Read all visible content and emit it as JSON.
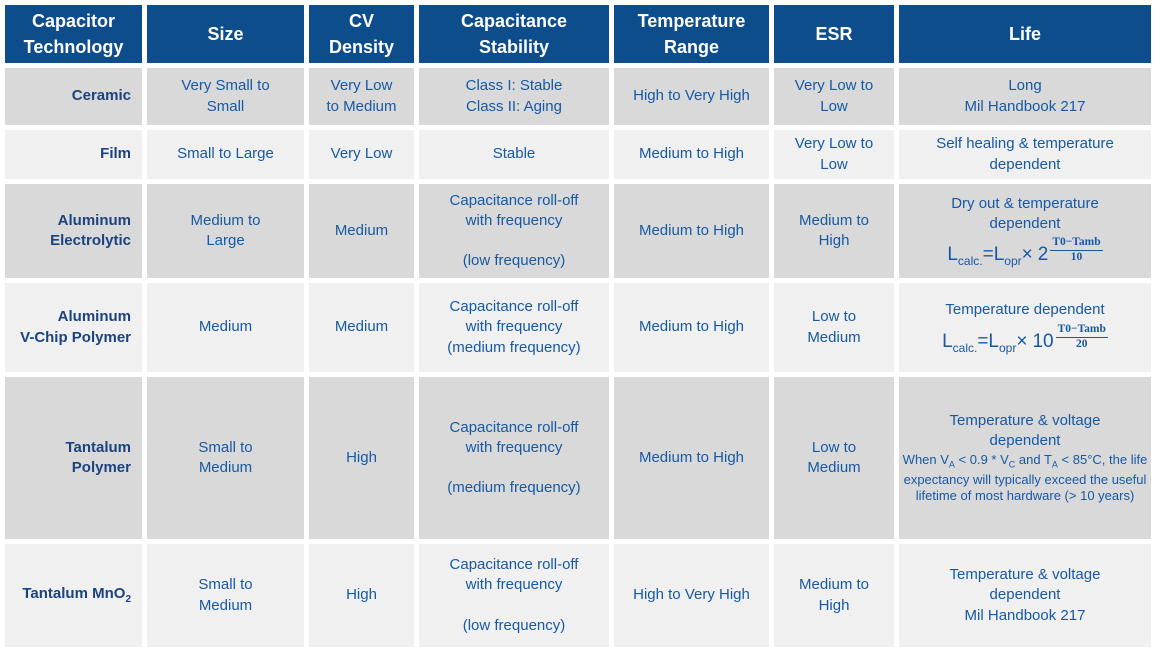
{
  "colors": {
    "header_bg": "#0D4D8C",
    "header_text": "#FFFFFF",
    "row_dark_bg": "#D9D9D9",
    "row_light_bg": "#F0F0F0",
    "cell_text": "#1659A5",
    "tech_text": "#1A4380"
  },
  "header": {
    "cols": [
      "Capacitor\nTechnology",
      "Size",
      "CV\nDensity",
      "Capacitance\nStability",
      "Temperature\nRange",
      "ESR",
      "Life"
    ]
  },
  "rows": [
    {
      "tech": "Ceramic",
      "size": "Very Small to\nSmall",
      "cv_density": "Very Low\nto Medium",
      "stability": "Class I: Stable\nClass II: Aging",
      "temp_range": "High to Very High",
      "esr": "Very Low to\nLow",
      "life": "Long\nMil Handbook 217"
    },
    {
      "tech": "Film",
      "size": "Small to Large",
      "cv_density": "Very Low",
      "stability": "Stable",
      "temp_range": "Medium to High",
      "esr": "Very Low to\nLow",
      "life": "Self healing & temperature\ndependent"
    },
    {
      "tech": "Aluminum\nElectrolytic",
      "size": "Medium to\nLarge",
      "cv_density": "Medium",
      "stability": "Capacitance roll-off\nwith frequency\n\n(low frequency)",
      "temp_range": "Medium to High",
      "esr": "Medium to\nHigh",
      "life": "Dry out & temperature\ndependent",
      "formula": {
        "lhs": "L",
        "lhs_sub": "calc.",
        "mid": "=L",
        "mid_sub": "opr",
        "op": "×",
        "base": "2",
        "num": "T0−Tamb",
        "den": "10"
      }
    },
    {
      "tech": "Aluminum\nV-Chip Polymer",
      "size": "Medium",
      "cv_density": "Medium",
      "stability": "Capacitance roll-off\nwith frequency\n(medium frequency)",
      "temp_range": "Medium to High",
      "esr": "Low to\nMedium",
      "life": "Temperature dependent",
      "formula": {
        "lhs": "L",
        "lhs_sub": "calc.",
        "mid": "=L",
        "mid_sub": "opr",
        "op": "×",
        "base": "10",
        "num": "T0−Tamb",
        "den": "20"
      }
    },
    {
      "tech": "Tantalum\nPolymer",
      "size": "Small to\nMedium",
      "cv_density": "High",
      "stability": "Capacitance roll-off\nwith frequency\n\n(medium frequency)",
      "temp_range": "Medium to High",
      "esr": "Low to\nMedium",
      "life": "Temperature & voltage\ndependent",
      "note": {
        "p1": "When V",
        "s1": "A",
        "p2": " < 0.9 * V",
        "s2": "C",
        "p3": " and T",
        "s3": "A",
        "p4": " < 85°C, the life expectancy will typically exceed the useful lifetime of most hardware (> 10 years)"
      }
    },
    {
      "tech_prefix": "Tantalum MnO",
      "tech_sub": "2",
      "size": "Small to\nMedium",
      "cv_density": "High",
      "stability": "Capacitance roll-off\nwith frequency\n\n(low frequency)",
      "temp_range": "High to Very High",
      "esr": "Medium to\nHigh",
      "life": "Temperature & voltage\ndependent\nMil Handbook 217"
    }
  ]
}
